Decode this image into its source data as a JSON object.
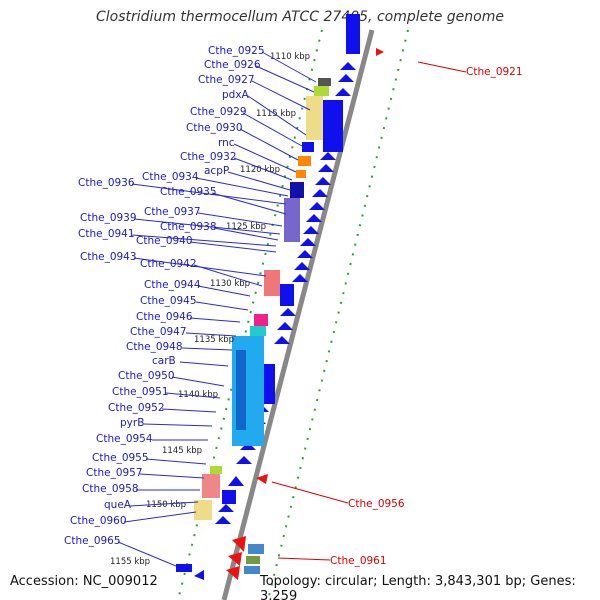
{
  "title": "Clostridium thermocellum ATCC 27405, complete genome",
  "accession": "Accession: NC_009012",
  "topology": "Topology: circular; Length: 3,843,301 bp; Genes: 3,259",
  "kbp_marks": [
    "1110 kbp",
    "1115 kbp",
    "1120 kbp",
    "1125 kbp",
    "1130 kbp",
    "1135 kbp",
    "1140 kbp",
    "1145 kbp",
    "1150 kbp",
    "1155 kbp"
  ],
  "left_labels": [
    "Cthe_0925",
    "Cthe_0926",
    "Cthe_0927",
    "pdxA",
    "Cthe_0929",
    "Cthe_0930",
    "rnc",
    "Cthe_0932",
    "acpP",
    "Cthe_0934",
    "Cthe_0936",
    "Cthe_0935",
    "Cthe_0937",
    "Cthe_0939",
    "Cthe_0938",
    "Cthe_0941",
    "Cthe_0940",
    "Cthe_0943",
    "Cthe_0942",
    "Cthe_0944",
    "Cthe_0945",
    "Cthe_0946",
    "Cthe_0947",
    "Cthe_0948",
    "carB",
    "Cthe_0950",
    "Cthe_0951",
    "Cthe_0952",
    "pyrB",
    "Cthe_0954",
    "Cthe_0955",
    "Cthe_0957",
    "Cthe_0958",
    "queA",
    "Cthe_0960",
    "Cthe_0965"
  ],
  "right_labels": [
    "Cthe_0921",
    "Cthe_0956",
    "Cthe_0961"
  ],
  "colors": {
    "gene_blue": "#1010ee",
    "line_blue": "#2a2ad8",
    "red": "#ee1111",
    "grid_green": "#22aa22",
    "backbone": "#888888"
  }
}
